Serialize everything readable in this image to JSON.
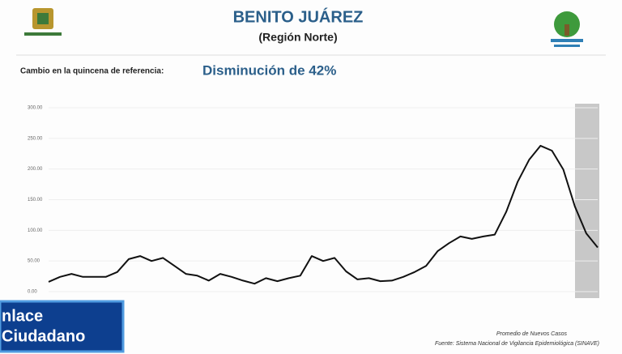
{
  "chart_data": {
    "type": "line",
    "title": "BENITO JUÁREZ",
    "subtitle": "(Región Norte)",
    "reference_label": "Cambio en la quincena de referencia:",
    "reference_value": "Disminución de 42%",
    "series": [
      {
        "name": "Promedio de Nuevos Casos",
        "color": "#111111",
        "values": [
          16,
          24,
          29,
          24,
          24,
          24,
          32,
          53,
          58,
          50,
          55,
          42,
          29,
          26,
          18,
          29,
          24,
          18,
          13,
          22,
          17,
          22,
          26,
          58,
          50,
          55,
          33,
          20,
          22,
          17,
          18,
          24,
          32,
          42,
          66,
          79,
          90,
          86,
          90,
          93,
          130,
          179,
          215,
          238,
          230,
          199,
          139,
          95,
          72
        ]
      }
    ],
    "source": "Fuente: Sistema Nacional de Vigilancia Epidemiológica (SINAVE)",
    "ylim": [
      0,
      300
    ],
    "yticks": [
      {
        "value": 0,
        "label": "0.00"
      },
      {
        "value": 50,
        "label": "50.00"
      },
      {
        "value": 100,
        "label": "100.00"
      },
      {
        "value": 150,
        "label": "150.00"
      },
      {
        "value": 200,
        "label": "200.00"
      },
      {
        "value": 250,
        "label": "250.00"
      },
      {
        "value": 300,
        "label": "300.00"
      }
    ],
    "overlay": [
      "nlace",
      "Ciudadano"
    ]
  }
}
